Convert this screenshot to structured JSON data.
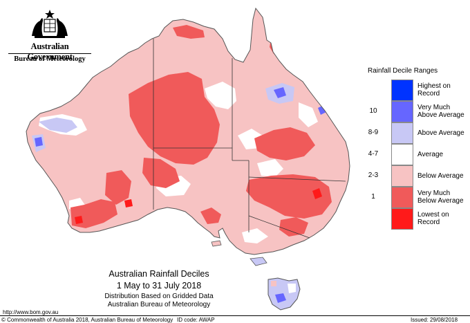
{
  "header": {
    "government": "Australian Government",
    "agency": "Bureau of Meteorology"
  },
  "legend": {
    "title": "Rainfall Decile Ranges",
    "items": [
      {
        "code": "",
        "label_lines": [
          "Highest on",
          "Record"
        ],
        "color": "#0033ff"
      },
      {
        "code": "10",
        "label_lines": [
          "Very Much",
          "Above Average"
        ],
        "color": "#6666ff"
      },
      {
        "code": "8-9",
        "label_lines": [
          "Above Average"
        ],
        "color": "#c8c8f5"
      },
      {
        "code": "4-7",
        "label_lines": [
          "Average"
        ],
        "color": "#ffffff"
      },
      {
        "code": "2-3",
        "label_lines": [
          "Below Average"
        ],
        "color": "#f7c3c3"
      },
      {
        "code": "1",
        "label_lines": [
          "Very Much",
          "Below Average"
        ],
        "color": "#f05a5a"
      },
      {
        "code": "",
        "label_lines": [
          "Lowest on",
          "Record"
        ],
        "color": "#ff1a1a"
      }
    ]
  },
  "title": {
    "line1": "Australian Rainfall Deciles",
    "line2": "1 May to 31 July 2018",
    "line3": "Distribution Based on Gridded Data",
    "line4": "Australian Bureau of Meteorology"
  },
  "footer": {
    "url": "http://www.bom.gov.au",
    "copyright": "© Commonwealth of Australia 2018, Australian Bureau of Meteorology",
    "id_code": "ID code: AWAP",
    "issued": "Issued: 29/08/2018"
  },
  "map": {
    "base_color": "#f7c3c3",
    "outline_color": "#555555",
    "state_border_color": "#333333"
  }
}
